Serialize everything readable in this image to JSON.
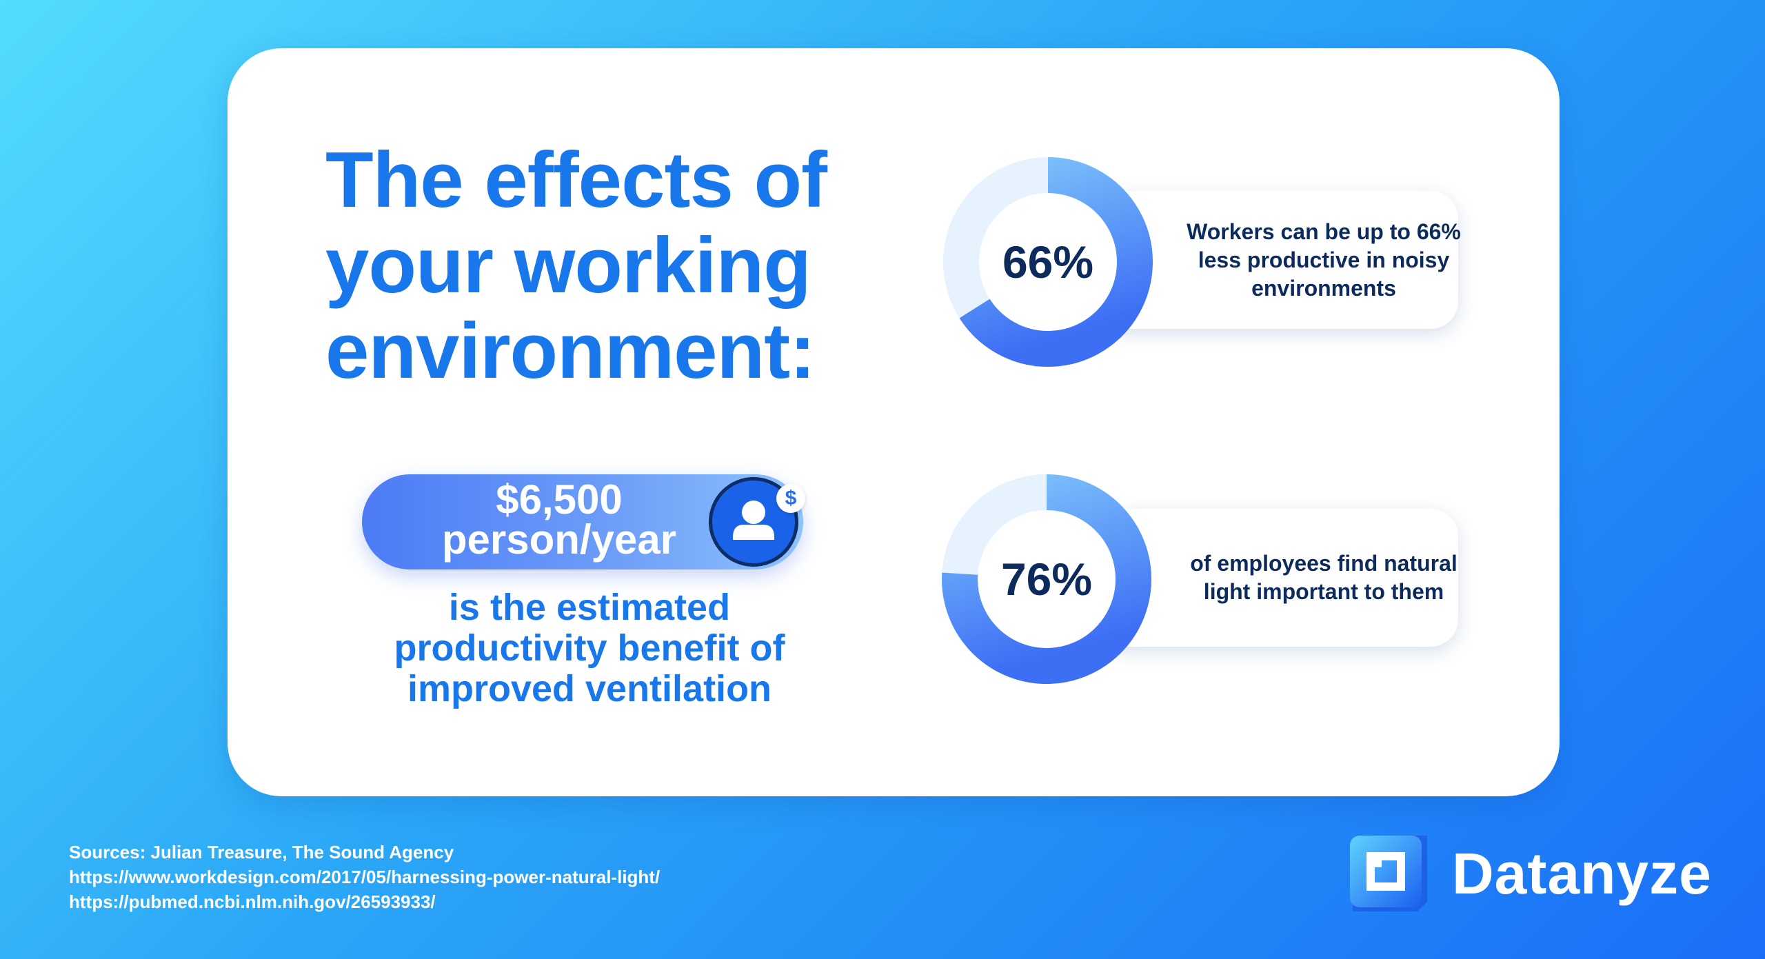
{
  "headline": {
    "lines": [
      "The effects of",
      "your working",
      "environment:"
    ]
  },
  "benefit": {
    "amount": "$6,500",
    "unit": "person/year",
    "description_lines": [
      "is the estimated",
      "productivity benefit of",
      "improved ventilation"
    ],
    "avatar_icon": "user-icon",
    "badge_symbol": "$"
  },
  "stats": [
    {
      "value_label": "66%",
      "percent": 66,
      "text_lines": [
        "Workers can be up to 66%",
        "less productive in noisy",
        "environments"
      ]
    },
    {
      "value_label": "76%",
      "percent": 76,
      "text_lines": [
        "of employees find natural",
        "light important to them"
      ]
    }
  ],
  "sources": [
    "Sources: Julian Treasure, The Sound Agency",
    "https://www.workdesign.com/2017/05/harnessing-power-natural-light/",
    "https://pubmed.ncbi.nlm.nih.gov/26593933/"
  ],
  "brand": {
    "name": "Datanyze",
    "logo_icon": "datanyze-logo-icon"
  },
  "colors": {
    "accent": "#1877ea",
    "dark_text": "#0c2a5c",
    "ring_track": "#e6f2fd",
    "ring_start": "#7cc2fb",
    "ring_end": "#3d6ff5"
  }
}
